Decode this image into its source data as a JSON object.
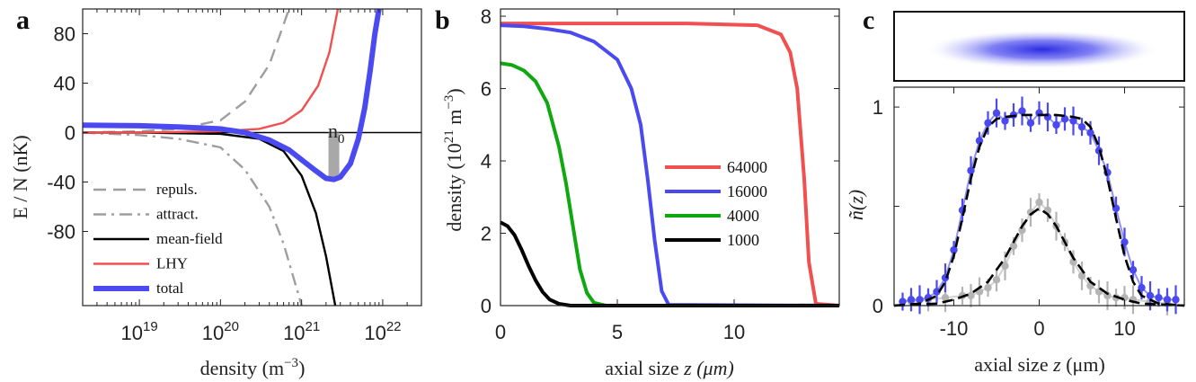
{
  "chart_data": [
    {
      "panel_label": "a",
      "type": "line",
      "xlabel": "density (m",
      "xlabel_exp": "−3",
      "xlabel_close": ")",
      "ylabel": "E / N (nK)",
      "xscale": "log",
      "xlim": [
        2e+18,
        3e+22
      ],
      "ylim": [
        -140,
        100
      ],
      "x_ticks": [
        {
          "base": "10",
          "exp": "19"
        },
        {
          "base": "10",
          "exp": "20"
        },
        {
          "base": "10",
          "exp": "21"
        },
        {
          "base": "10",
          "exp": "22"
        }
      ],
      "y_ticks": [
        "80",
        "40",
        "0",
        "-40",
        "-80"
      ],
      "annotation": {
        "text": "n",
        "sub": "0",
        "x": 2.5e+21
      },
      "series": [
        {
          "name": "repuls.",
          "color": "#9e9e9e",
          "style": "dashed",
          "x": [
            2e+18,
            1e+19,
            3e+19,
            1e+20,
            2e+20,
            4e+20,
            7e+20
          ],
          "y": [
            0,
            1,
            3,
            10,
            25,
            55,
            100
          ]
        },
        {
          "name": "attract.",
          "color": "#9e9e9e",
          "style": "dashdot",
          "x": [
            2e+18,
            1e+19,
            3e+19,
            1e+20,
            2e+20,
            4e+20,
            6e+20,
            8e+20,
            1e+21
          ],
          "y": [
            0,
            -2,
            -5,
            -12,
            -30,
            -60,
            -90,
            -118,
            -140
          ]
        },
        {
          "name": "mean-field",
          "color": "#000000",
          "style": "solid",
          "x": [
            2e+18,
            1e+19,
            1e+20,
            3e+20,
            6e+20,
            1e+21,
            1.5e+21,
            2e+21,
            2.6e+21
          ],
          "y": [
            0,
            0,
            -1,
            -5,
            -15,
            -35,
            -65,
            -100,
            -140
          ]
        },
        {
          "name": "LHY",
          "color": "#f05050",
          "style": "solid",
          "x": [
            2e+18,
            1e+19,
            1e+20,
            3e+20,
            6e+20,
            1e+21,
            1.6e+21,
            2.2e+21,
            2.8e+21
          ],
          "y": [
            0,
            0,
            1,
            3,
            8,
            18,
            38,
            65,
            100
          ]
        },
        {
          "name": "total",
          "color": "#4a4af0",
          "style": "thick",
          "x": [
            2e+18,
            1e+19,
            3e+19,
            1e+20,
            2e+20,
            4e+20,
            7e+20,
            1e+21,
            1.5e+21,
            2e+21,
            2.5e+21,
            3e+21,
            4e+21,
            5e+21,
            6e+21,
            7e+21,
            8e+21,
            9e+21
          ],
          "y": [
            6,
            5.5,
            4.5,
            3,
            0,
            -6,
            -14,
            -22,
            -31,
            -37,
            -38,
            -36,
            -25,
            -5,
            20,
            50,
            80,
            100
          ]
        }
      ]
    },
    {
      "panel_label": "b",
      "type": "line",
      "xlabel": "axial size",
      "xlabel_var": "z",
      "xlabel_unit": "(μm)",
      "ylabel": "density",
      "ylabel_unit_open": "(10",
      "ylabel_exp": "21",
      "ylabel_unit_mid": " m",
      "ylabel_exp2": "−3",
      "ylabel_unit_close": ")",
      "xlim": [
        0,
        14.5
      ],
      "ylim": [
        0,
        8.2
      ],
      "x_ticks": [
        "0",
        "5",
        "10"
      ],
      "y_ticks": [
        "0",
        "2",
        "4",
        "6",
        "8"
      ],
      "series": [
        {
          "name": "64000",
          "color": "#f05050",
          "x": [
            0,
            4,
            8,
            11,
            12,
            12.4,
            12.7,
            13,
            13.2,
            13.5,
            14.5
          ],
          "y": [
            7.8,
            7.8,
            7.8,
            7.75,
            7.5,
            7,
            6,
            3.5,
            1.2,
            0.05,
            0
          ]
        },
        {
          "name": "16000",
          "color": "#4a4af0",
          "x": [
            0,
            1,
            2,
            3,
            4,
            5,
            5.6,
            6.0,
            6.3,
            6.6,
            6.9,
            7.2,
            14.5
          ],
          "y": [
            7.75,
            7.72,
            7.65,
            7.55,
            7.3,
            6.8,
            6.0,
            5.0,
            3.5,
            1.8,
            0.4,
            0.02,
            0
          ]
        },
        {
          "name": "4000",
          "color": "#10a810",
          "x": [
            0,
            0.5,
            1,
            1.5,
            2,
            2.5,
            2.8,
            3.1,
            3.4,
            3.7,
            4.0,
            4.5,
            14.5
          ],
          "y": [
            6.7,
            6.65,
            6.5,
            6.2,
            5.6,
            4.4,
            3.4,
            2.2,
            1.0,
            0.35,
            0.08,
            0,
            0
          ]
        },
        {
          "name": "1000",
          "color": "#000000",
          "x": [
            0,
            0.3,
            0.6,
            0.9,
            1.2,
            1.5,
            1.8,
            2.1,
            2.5,
            3,
            14.5
          ],
          "y": [
            2.3,
            2.2,
            1.95,
            1.55,
            1.1,
            0.7,
            0.38,
            0.17,
            0.05,
            0,
            0
          ]
        }
      ]
    },
    {
      "panel_label": "c",
      "type": "scatter",
      "xlabel": "axial size",
      "xlabel_var": "z",
      "xlabel_unit": "(μm)",
      "ylabel_var": "ñ",
      "ylabel_arg": "(z)",
      "xlim": [
        -17,
        17
      ],
      "ylim": [
        0,
        1.1
      ],
      "x_ticks": [
        "-10",
        "0",
        "10"
      ],
      "y_ticks": [
        "0",
        "0.5",
        "1"
      ],
      "series": [
        {
          "color": "#4a4af0",
          "marker": "circle",
          "x": [
            -16,
            -15,
            -14,
            -13,
            -12,
            -11,
            -10,
            -9,
            -8,
            -7,
            -6,
            -5,
            -4,
            -3,
            -2,
            -1,
            0,
            1,
            2,
            3,
            4,
            5,
            6,
            7,
            8,
            9,
            10,
            11,
            12,
            13,
            14,
            15,
            16
          ],
          "y": [
            0.02,
            0.03,
            0.03,
            0.04,
            0.07,
            0.14,
            0.28,
            0.48,
            0.68,
            0.83,
            0.92,
            0.97,
            0.93,
            0.96,
            0.98,
            0.92,
            0.97,
            0.95,
            0.91,
            0.94,
            0.93,
            0.9,
            0.87,
            0.78,
            0.67,
            0.49,
            0.32,
            0.18,
            0.09,
            0.05,
            0.04,
            0.03,
            0.03
          ]
        },
        {
          "color": "#b4b4b4",
          "marker": "circle",
          "x": [
            -15,
            -13,
            -11,
            -9,
            -8,
            -7,
            -6,
            -5,
            -4,
            -3,
            -2,
            -1,
            0,
            1,
            2,
            3,
            4,
            5,
            6,
            7,
            8,
            9,
            10,
            11,
            13,
            15
          ],
          "y": [
            0.02,
            0.03,
            0.04,
            0.05,
            0.05,
            0.07,
            0.09,
            0.13,
            0.2,
            0.3,
            0.38,
            0.47,
            0.52,
            0.48,
            0.4,
            0.32,
            0.22,
            0.15,
            0.1,
            0.07,
            0.05,
            0.04,
            0.04,
            0.03,
            0.02,
            0.01
          ]
        },
        {
          "color": "#000000",
          "marker": "none",
          "style": "dashed",
          "x": [
            -17,
            -14,
            -12,
            -11,
            -10,
            -9,
            -8,
            -7,
            -6,
            -5,
            -4,
            -2,
            0,
            2,
            4,
            5,
            6,
            7,
            8,
            9,
            10,
            11,
            12,
            14,
            17
          ],
          "y": [
            0,
            0.01,
            0.05,
            0.12,
            0.25,
            0.44,
            0.64,
            0.8,
            0.9,
            0.94,
            0.95,
            0.96,
            0.96,
            0.96,
            0.95,
            0.94,
            0.9,
            0.8,
            0.64,
            0.44,
            0.25,
            0.12,
            0.05,
            0.01,
            0
          ]
        },
        {
          "color": "#000000",
          "marker": "none",
          "style": "dashed",
          "x": [
            -17,
            -12,
            -10,
            -8,
            -6,
            -4,
            -3,
            -2,
            -1,
            0,
            1,
            2,
            3,
            4,
            6,
            8,
            10,
            12,
            17
          ],
          "y": [
            0,
            0.01,
            0.03,
            0.06,
            0.12,
            0.24,
            0.32,
            0.4,
            0.46,
            0.49,
            0.46,
            0.4,
            0.32,
            0.24,
            0.12,
            0.06,
            0.03,
            0.01,
            0
          ]
        }
      ]
    }
  ]
}
